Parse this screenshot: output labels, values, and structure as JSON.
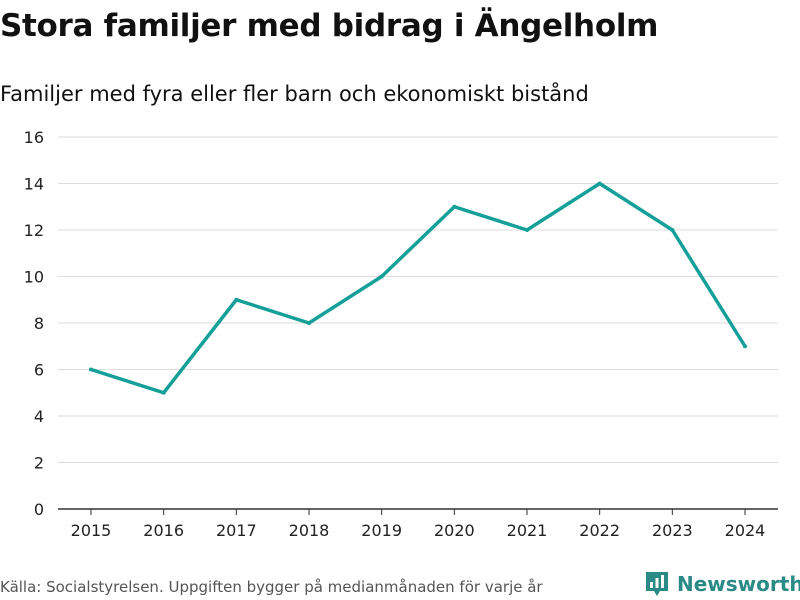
{
  "title": "Stora familjer med bidrag i Ängelholm",
  "subtitle": "Familjer med fyra eller fler barn och ekonomiskt bistånd",
  "source": "Källa: Socialstyrelsen. Uppgiften bygger på medianmånaden för varje år",
  "brand": {
    "name": "Newsworthy",
    "icon": "newsworthy-logo-icon"
  },
  "colors": {
    "line": "#14a098",
    "grid": "#dddddd",
    "axis": "#333333",
    "brand": "#2a8a86"
  },
  "chart_data": {
    "type": "line",
    "title": "Stora familjer med bidrag i Ängelholm",
    "subtitle": "Familjer med fyra eller fler barn och ekonomiskt bistånd",
    "xlabel": "",
    "ylabel": "",
    "categories": [
      "2015",
      "2016",
      "2017",
      "2018",
      "2019",
      "2020",
      "2021",
      "2022",
      "2023",
      "2024"
    ],
    "series": [
      {
        "name": "Familjer med fyra eller fler barn och ekonomiskt bistånd",
        "values": [
          6,
          5,
          9,
          8,
          10,
          13,
          12,
          14,
          12,
          7
        ]
      }
    ],
    "ylim": [
      0,
      16
    ],
    "yticks": [
      0,
      2,
      4,
      6,
      8,
      10,
      12,
      14,
      16
    ],
    "grid": true,
    "legend": "none"
  }
}
